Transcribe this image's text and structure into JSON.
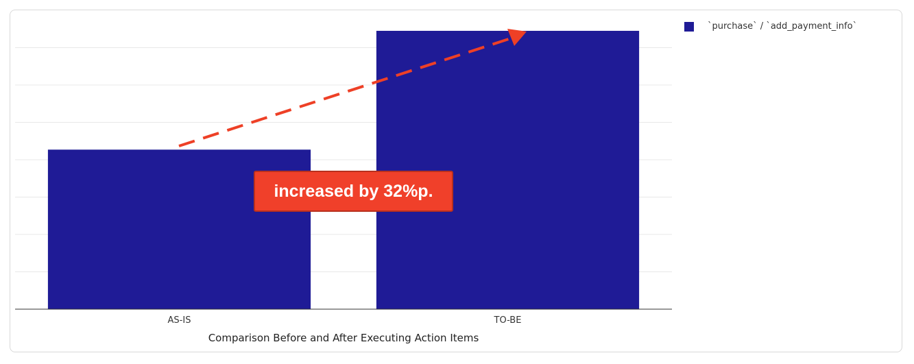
{
  "chart_data": {
    "type": "bar",
    "categories": [
      "AS-IS",
      "TO-BE"
    ],
    "series": [
      {
        "name": "`purchase` / `add_payment_info`",
        "values": [
          0.427,
          0.745
        ]
      }
    ],
    "title": "",
    "xlabel": "Comparison Before and After Executing Action Items",
    "ylabel": "",
    "ylim": [
      0,
      0.8
    ],
    "grid": true,
    "legend_position": "top-right",
    "annotation": "increased by 32%p.",
    "colors": {
      "bar": "#1f1b96",
      "callout": "#f0402a",
      "arrow": "#ee4026",
      "grid": "#e8e8e8"
    }
  }
}
